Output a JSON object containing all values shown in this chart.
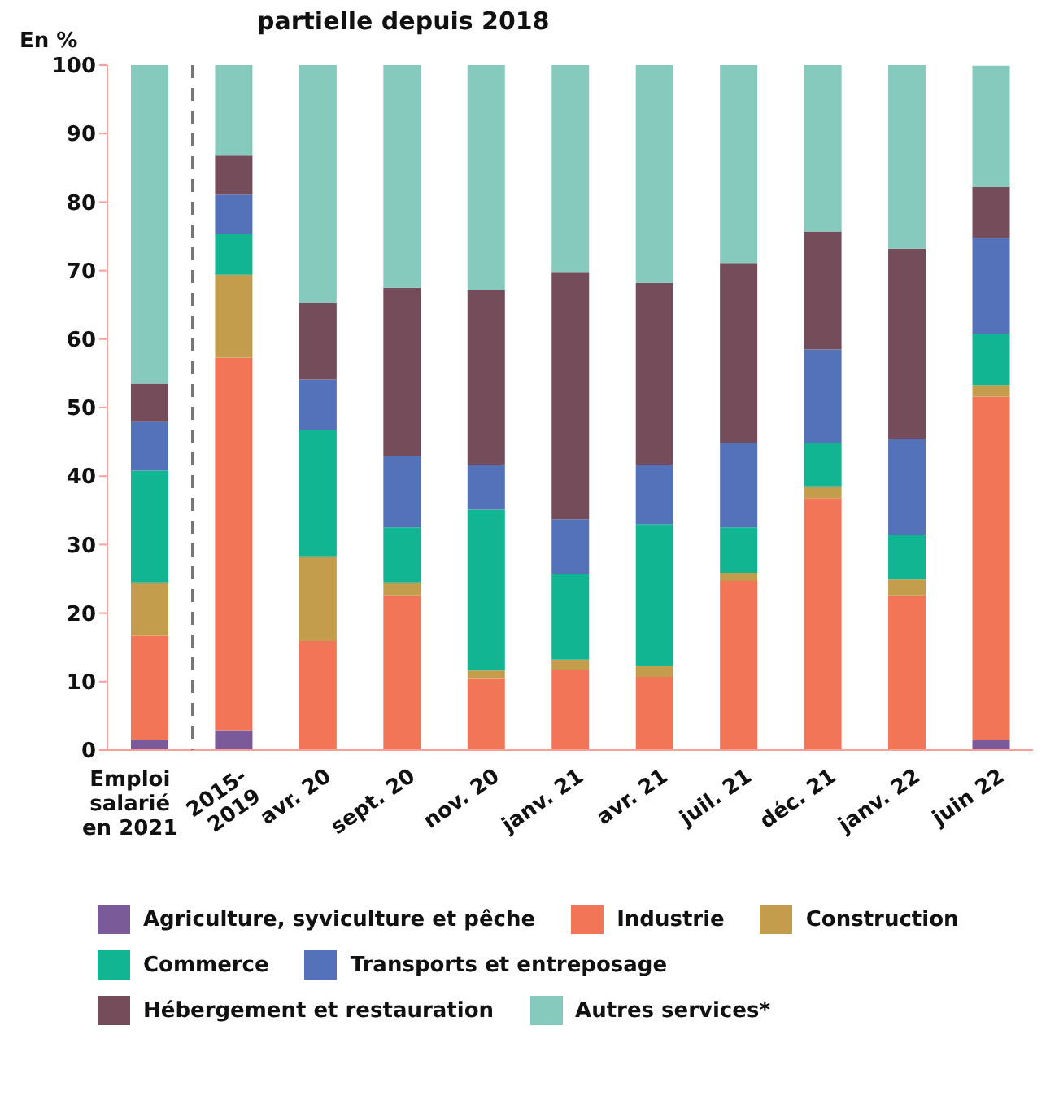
{
  "chart_data": {
    "type": "bar",
    "stacked": true,
    "title": "partielle depuis 2018",
    "ylabel": "En %",
    "categories": [
      "Emploi salarié en 2021",
      "2015-2019",
      "avr. 20",
      "sept. 20",
      "nov. 20",
      "janv. 21",
      "avr. 21",
      "juil. 21",
      "déc. 21",
      "janv. 22",
      "juin 22"
    ],
    "series": [
      {
        "name": "Agriculture, syviculture et pêche",
        "color": "#7b5a9a",
        "values": [
          1.5,
          2.9,
          0.2,
          0.2,
          0.2,
          0.2,
          0.2,
          0.2,
          0.2,
          0.2,
          1.5
        ]
      },
      {
        "name": "Industrie",
        "color": "#f27558",
        "values": [
          15.2,
          54.4,
          15.7,
          22.4,
          10.3,
          11.5,
          10.5,
          24.5,
          36.6,
          22.4,
          50.1
        ]
      },
      {
        "name": "Construction",
        "color": "#c49d4c",
        "values": [
          7.8,
          12.1,
          12.4,
          1.9,
          1.1,
          1.5,
          1.6,
          1.2,
          1.7,
          2.3,
          1.7
        ]
      },
      {
        "name": "Commerce",
        "color": "#11b592",
        "values": [
          16.3,
          5.9,
          18.5,
          8.0,
          23.5,
          12.5,
          20.7,
          6.6,
          6.4,
          6.5,
          7.5
        ]
      },
      {
        "name": "Transports et entreposage",
        "color": "#5372b9",
        "values": [
          7.1,
          5.8,
          7.3,
          10.4,
          6.5,
          8.0,
          8.6,
          12.4,
          13.6,
          14.0,
          14.0
        ]
      },
      {
        "name": "Hébergement et restauration",
        "color": "#754d5a",
        "values": [
          5.6,
          5.7,
          11.1,
          24.6,
          25.5,
          36.1,
          26.6,
          26.2,
          17.2,
          27.8,
          7.4
        ]
      },
      {
        "name": "Autres services*",
        "color": "#86cabd",
        "values": [
          46.5,
          13.2,
          34.8,
          32.5,
          32.9,
          30.2,
          31.8,
          28.9,
          24.3,
          26.8,
          17.7
        ]
      }
    ],
    "ylim": [
      0,
      100
    ],
    "yticks": [
      0,
      10,
      20,
      30,
      40,
      50,
      60,
      70,
      80,
      90,
      100
    ],
    "grid": false,
    "legend": "bottom"
  }
}
